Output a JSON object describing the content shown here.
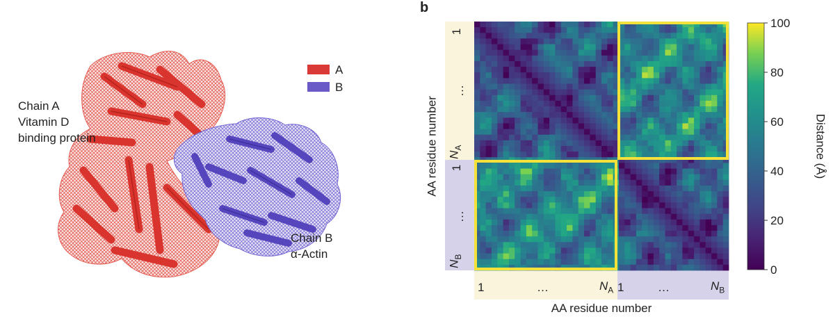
{
  "panel_a": {
    "legend": [
      {
        "label": "A",
        "color": "#d93a35"
      },
      {
        "label": "B",
        "color": "#6a5ac8"
      }
    ],
    "chain_a_text": [
      "Chain A",
      "Vitamin D",
      "binding protein"
    ],
    "chain_b_text": [
      "Chain B",
      "α-Actin"
    ]
  },
  "panel_b": {
    "letter": "b",
    "chart_data": {
      "type": "heatmap",
      "xlabel": "AA residue number",
      "ylabel": "AA residue number",
      "colorbar": {
        "label": "Distance (Å)",
        "range": [
          0,
          100
        ],
        "ticks": [
          0,
          20,
          40,
          60,
          80,
          100
        ],
        "colormap": "viridis"
      },
      "x_ticks": [
        {
          "text": "1",
          "segment": "A"
        },
        {
          "text": "…",
          "segment": "A"
        },
        {
          "text": "N",
          "sub": "A",
          "segment": "A"
        },
        {
          "text": "1",
          "segment": "B"
        },
        {
          "text": "…",
          "segment": "B"
        },
        {
          "text": "N",
          "sub": "B",
          "segment": "B"
        }
      ],
      "y_ticks": [
        {
          "text": "1",
          "segment": "A"
        },
        {
          "text": "…",
          "segment": "A"
        },
        {
          "text": "N",
          "sub": "A",
          "segment": "A"
        },
        {
          "text": "1",
          "segment": "B"
        },
        {
          "text": "…",
          "segment": "B"
        },
        {
          "text": "N",
          "sub": "B",
          "segment": "B"
        }
      ],
      "segments": [
        {
          "name": "A",
          "color": "#fbf4dd"
        },
        {
          "name": "B",
          "color": "#d6d2ea"
        }
      ],
      "highlight_blocks": [
        "A-B",
        "B-A"
      ],
      "highlight_color": "#f4e13a"
    }
  }
}
